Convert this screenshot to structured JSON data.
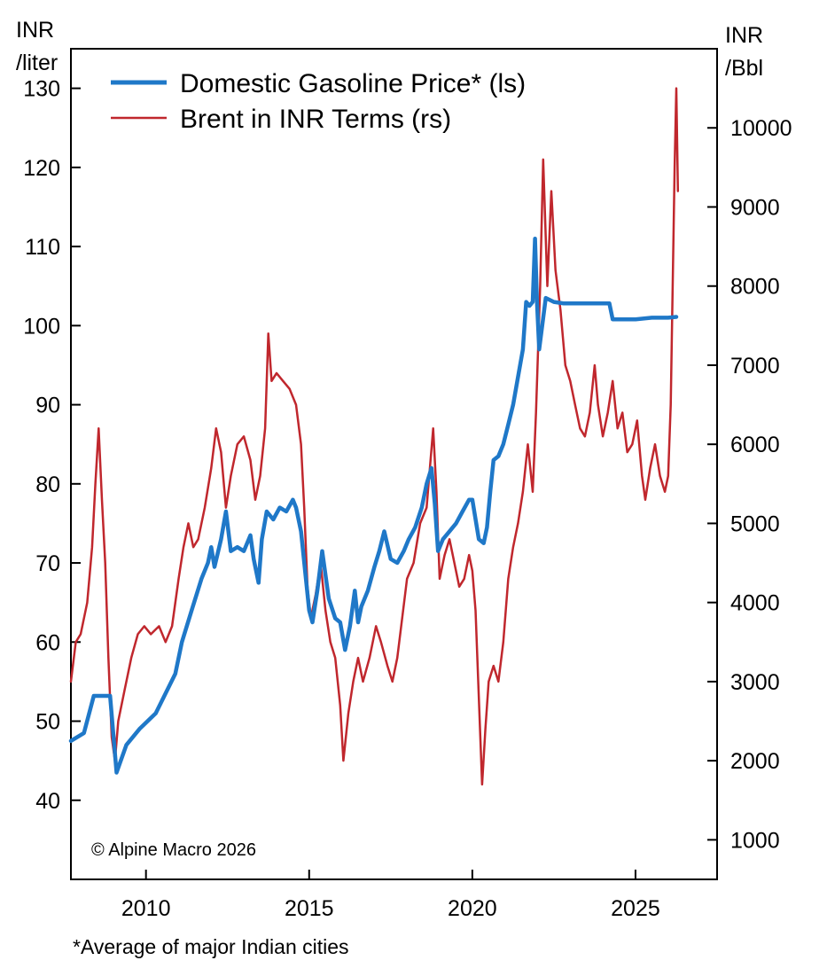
{
  "chart_data": {
    "type": "line",
    "left_axis": {
      "unit_line1": "INR",
      "unit_line2": "/liter",
      "ylim": [
        30,
        135
      ],
      "ticks": [
        40,
        50,
        60,
        70,
        80,
        90,
        100,
        110,
        120,
        130
      ]
    },
    "right_axis": {
      "unit_line1": "INR",
      "unit_line2": "/Bbl",
      "ylim": [
        500,
        11000
      ],
      "ticks": [
        1000,
        2000,
        3000,
        4000,
        5000,
        6000,
        7000,
        8000,
        9000,
        10000
      ]
    },
    "x_axis": {
      "xlim": [
        2007.7,
        2027.5
      ],
      "ticks": [
        2010,
        2015,
        2020,
        2025
      ]
    },
    "legend": [
      {
        "label": "Domestic Gasoline Price* (ls)",
        "color": "#1f78c8"
      },
      {
        "label": "Brent in INR Terms (rs)",
        "color": "#c0272d"
      }
    ],
    "credit": "© Alpine Macro 2026",
    "footnote": "*Average of major Indian cities",
    "series": [
      {
        "name": "Domestic Gasoline Price* (ls)",
        "axis": "left",
        "color": "#1f78c8",
        "points": [
          [
            2007.7,
            47.5
          ],
          [
            2008.1,
            48.5
          ],
          [
            2008.4,
            53.2
          ],
          [
            2008.6,
            53.2
          ],
          [
            2008.9,
            53.2
          ],
          [
            2009.1,
            43.5
          ],
          [
            2009.4,
            47.0
          ],
          [
            2009.8,
            49.0
          ],
          [
            2010.3,
            51.0
          ],
          [
            2010.9,
            56.0
          ],
          [
            2011.1,
            60.0
          ],
          [
            2011.4,
            64.0
          ],
          [
            2011.7,
            68.0
          ],
          [
            2011.9,
            70.0
          ],
          [
            2012.0,
            72.0
          ],
          [
            2012.1,
            69.5
          ],
          [
            2012.3,
            73.0
          ],
          [
            2012.45,
            76.5
          ],
          [
            2012.6,
            71.5
          ],
          [
            2012.8,
            72.0
          ],
          [
            2013.0,
            71.5
          ],
          [
            2013.2,
            73.5
          ],
          [
            2013.3,
            70.5
          ],
          [
            2013.45,
            67.5
          ],
          [
            2013.55,
            73.0
          ],
          [
            2013.7,
            76.5
          ],
          [
            2013.9,
            75.5
          ],
          [
            2014.1,
            77.0
          ],
          [
            2014.3,
            76.5
          ],
          [
            2014.5,
            78.0
          ],
          [
            2014.6,
            77.0
          ],
          [
            2014.75,
            74.0
          ],
          [
            2014.9,
            68.0
          ],
          [
            2015.0,
            64.0
          ],
          [
            2015.1,
            62.5
          ],
          [
            2015.25,
            66.5
          ],
          [
            2015.4,
            71.5
          ],
          [
            2015.6,
            65.5
          ],
          [
            2015.8,
            63.0
          ],
          [
            2015.95,
            62.5
          ],
          [
            2016.1,
            59.0
          ],
          [
            2016.25,
            62.0
          ],
          [
            2016.4,
            66.5
          ],
          [
            2016.5,
            62.5
          ],
          [
            2016.6,
            64.5
          ],
          [
            2016.8,
            66.5
          ],
          [
            2017.0,
            69.5
          ],
          [
            2017.15,
            71.5
          ],
          [
            2017.3,
            74.0
          ],
          [
            2017.5,
            70.5
          ],
          [
            2017.7,
            70.0
          ],
          [
            2017.9,
            71.5
          ],
          [
            2018.05,
            73.0
          ],
          [
            2018.25,
            74.5
          ],
          [
            2018.45,
            77.0
          ],
          [
            2018.6,
            80.0
          ],
          [
            2018.75,
            82.0
          ],
          [
            2018.85,
            77.5
          ],
          [
            2018.95,
            71.5
          ],
          [
            2019.1,
            73.0
          ],
          [
            2019.3,
            74.0
          ],
          [
            2019.5,
            75.0
          ],
          [
            2019.7,
            76.5
          ],
          [
            2019.9,
            78.0
          ],
          [
            2020.0,
            78.0
          ],
          [
            2020.2,
            73.0
          ],
          [
            2020.35,
            72.5
          ],
          [
            2020.45,
            74.5
          ],
          [
            2020.55,
            79.0
          ],
          [
            2020.65,
            83.0
          ],
          [
            2020.8,
            83.5
          ],
          [
            2020.95,
            85.0
          ],
          [
            2021.1,
            87.5
          ],
          [
            2021.25,
            90.0
          ],
          [
            2021.4,
            93.5
          ],
          [
            2021.55,
            97.0
          ],
          [
            2021.65,
            103.0
          ],
          [
            2021.75,
            102.5
          ],
          [
            2021.85,
            103.0
          ],
          [
            2021.92,
            111.0
          ],
          [
            2021.98,
            103.0
          ],
          [
            2022.05,
            97.0
          ],
          [
            2022.25,
            103.5
          ],
          [
            2022.5,
            103.0
          ],
          [
            2022.8,
            102.8
          ],
          [
            2023.3,
            102.8
          ],
          [
            2023.8,
            102.8
          ],
          [
            2024.2,
            102.8
          ],
          [
            2024.3,
            100.8
          ],
          [
            2024.6,
            100.8
          ],
          [
            2025.0,
            100.8
          ],
          [
            2025.5,
            101.0
          ],
          [
            2026.0,
            101.0
          ],
          [
            2026.25,
            101.1
          ]
        ]
      },
      {
        "name": "Brent in INR Terms (rs)",
        "axis": "right",
        "color": "#c0272d",
        "points": [
          [
            2007.7,
            3000
          ],
          [
            2007.85,
            3500
          ],
          [
            2008.0,
            3600
          ],
          [
            2008.2,
            4000
          ],
          [
            2008.35,
            4700
          ],
          [
            2008.45,
            5500
          ],
          [
            2008.55,
            6200
          ],
          [
            2008.65,
            5300
          ],
          [
            2008.75,
            4500
          ],
          [
            2008.85,
            3300
          ],
          [
            2008.95,
            2300
          ],
          [
            2009.05,
            2000
          ],
          [
            2009.15,
            2500
          ],
          [
            2009.35,
            2900
          ],
          [
            2009.55,
            3300
          ],
          [
            2009.75,
            3600
          ],
          [
            2009.95,
            3700
          ],
          [
            2010.15,
            3600
          ],
          [
            2010.4,
            3700
          ],
          [
            2010.6,
            3500
          ],
          [
            2010.8,
            3700
          ],
          [
            2011.0,
            4300
          ],
          [
            2011.15,
            4700
          ],
          [
            2011.3,
            5000
          ],
          [
            2011.45,
            4700
          ],
          [
            2011.6,
            4800
          ],
          [
            2011.8,
            5200
          ],
          [
            2012.0,
            5700
          ],
          [
            2012.15,
            6200
          ],
          [
            2012.3,
            5900
          ],
          [
            2012.45,
            5200
          ],
          [
            2012.6,
            5600
          ],
          [
            2012.8,
            6000
          ],
          [
            2013.0,
            6100
          ],
          [
            2013.2,
            5800
          ],
          [
            2013.35,
            5300
          ],
          [
            2013.5,
            5600
          ],
          [
            2013.65,
            6200
          ],
          [
            2013.75,
            7400
          ],
          [
            2013.85,
            6800
          ],
          [
            2014.0,
            6900
          ],
          [
            2014.2,
            6800
          ],
          [
            2014.4,
            6700
          ],
          [
            2014.6,
            6500
          ],
          [
            2014.75,
            6000
          ],
          [
            2014.85,
            5200
          ],
          [
            2014.95,
            4200
          ],
          [
            2015.05,
            3800
          ],
          [
            2015.2,
            4100
          ],
          [
            2015.35,
            4500
          ],
          [
            2015.5,
            3900
          ],
          [
            2015.65,
            3500
          ],
          [
            2015.8,
            3300
          ],
          [
            2015.95,
            2700
          ],
          [
            2016.05,
            2000
          ],
          [
            2016.2,
            2600
          ],
          [
            2016.35,
            3000
          ],
          [
            2016.5,
            3300
          ],
          [
            2016.65,
            3000
          ],
          [
            2016.85,
            3300
          ],
          [
            2017.05,
            3700
          ],
          [
            2017.2,
            3500
          ],
          [
            2017.4,
            3200
          ],
          [
            2017.55,
            3000
          ],
          [
            2017.7,
            3300
          ],
          [
            2017.85,
            3800
          ],
          [
            2018.0,
            4300
          ],
          [
            2018.2,
            4500
          ],
          [
            2018.4,
            5000
          ],
          [
            2018.6,
            5200
          ],
          [
            2018.8,
            6200
          ],
          [
            2018.9,
            5400
          ],
          [
            2019.0,
            4300
          ],
          [
            2019.15,
            4600
          ],
          [
            2019.3,
            4800
          ],
          [
            2019.45,
            4500
          ],
          [
            2019.6,
            4200
          ],
          [
            2019.75,
            4300
          ],
          [
            2019.9,
            4600
          ],
          [
            2020.0,
            4400
          ],
          [
            2020.1,
            3900
          ],
          [
            2020.2,
            2800
          ],
          [
            2020.3,
            1700
          ],
          [
            2020.4,
            2400
          ],
          [
            2020.5,
            3000
          ],
          [
            2020.65,
            3200
          ],
          [
            2020.8,
            3000
          ],
          [
            2020.95,
            3500
          ],
          [
            2021.1,
            4300
          ],
          [
            2021.25,
            4700
          ],
          [
            2021.4,
            5000
          ],
          [
            2021.55,
            5400
          ],
          [
            2021.7,
            6000
          ],
          [
            2021.85,
            5400
          ],
          [
            2021.95,
            6400
          ],
          [
            2022.08,
            8000
          ],
          [
            2022.17,
            9600
          ],
          [
            2022.3,
            8000
          ],
          [
            2022.42,
            9200
          ],
          [
            2022.55,
            8200
          ],
          [
            2022.7,
            7700
          ],
          [
            2022.85,
            7000
          ],
          [
            2023.0,
            6800
          ],
          [
            2023.15,
            6500
          ],
          [
            2023.3,
            6200
          ],
          [
            2023.45,
            6100
          ],
          [
            2023.6,
            6400
          ],
          [
            2023.75,
            7000
          ],
          [
            2023.85,
            6500
          ],
          [
            2024.0,
            6100
          ],
          [
            2024.15,
            6400
          ],
          [
            2024.3,
            6800
          ],
          [
            2024.45,
            6200
          ],
          [
            2024.6,
            6400
          ],
          [
            2024.75,
            5900
          ],
          [
            2024.9,
            6000
          ],
          [
            2025.05,
            6300
          ],
          [
            2025.2,
            5600
          ],
          [
            2025.3,
            5300
          ],
          [
            2025.45,
            5700
          ],
          [
            2025.6,
            6000
          ],
          [
            2025.75,
            5600
          ],
          [
            2025.9,
            5400
          ],
          [
            2026.0,
            5600
          ],
          [
            2026.08,
            6500
          ],
          [
            2026.14,
            8000
          ],
          [
            2026.2,
            9500
          ],
          [
            2026.25,
            10500
          ],
          [
            2026.3,
            9200
          ]
        ]
      }
    ]
  }
}
